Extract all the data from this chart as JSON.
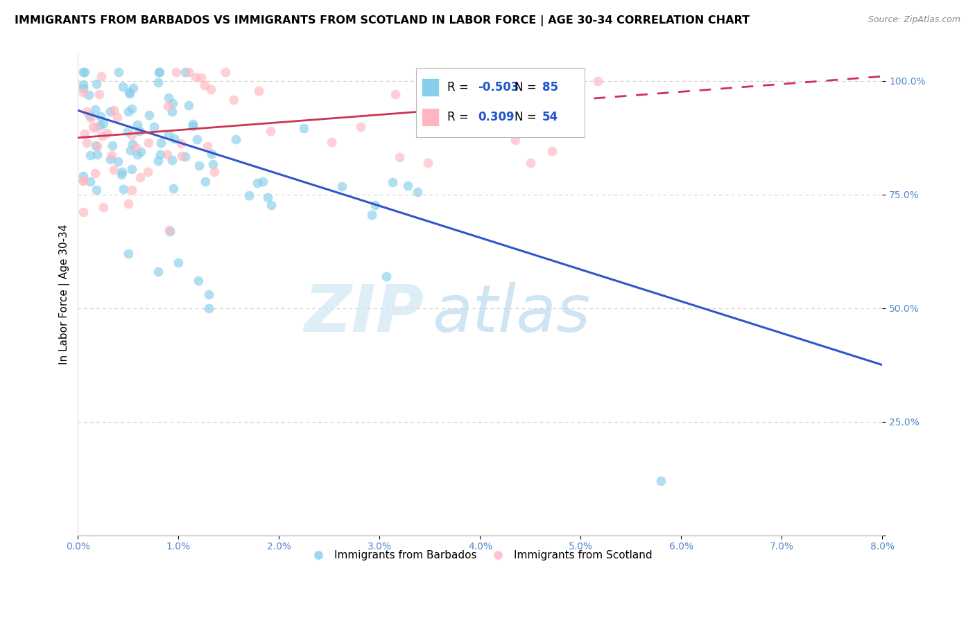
{
  "title": "IMMIGRANTS FROM BARBADOS VS IMMIGRANTS FROM SCOTLAND IN LABOR FORCE | AGE 30-34 CORRELATION CHART",
  "source": "Source: ZipAtlas.com",
  "ylabel": "In Labor Force | Age 30-34",
  "xlim": [
    0.0,
    0.08
  ],
  "ylim": [
    0.0,
    1.06
  ],
  "watermark_zip": "ZIP",
  "watermark_atlas": "atlas",
  "legend_r_barbados": "-0.503",
  "legend_n_barbados": "85",
  "legend_r_scotland": "0.309",
  "legend_n_scotland": "54",
  "color_barbados": "#87CEEB",
  "color_scotland": "#FFB6C1",
  "trendline_barbados_color": "#3355CC",
  "trendline_scotland_color": "#CC3355",
  "trendline_b_x0": 0.0,
  "trendline_b_y0": 0.935,
  "trendline_b_x1": 0.08,
  "trendline_b_y1": 0.375,
  "trendline_s_x0": 0.0,
  "trendline_s_y0": 0.875,
  "trendline_s_x1": 0.08,
  "trendline_s_y1": 1.01,
  "trendline_s_solid_end": 0.045,
  "grid_color": "#cccccc",
  "tick_color": "#5588cc",
  "x_tick_values": [
    0.0,
    0.01,
    0.02,
    0.03,
    0.04,
    0.05,
    0.06,
    0.07,
    0.08
  ],
  "x_tick_labels": [
    "0.0%",
    "1.0%",
    "2.0%",
    "3.0%",
    "4.0%",
    "5.0%",
    "6.0%",
    "7.0%",
    "8.0%"
  ],
  "y_tick_values": [
    0.0,
    0.25,
    0.5,
    0.75,
    1.0
  ],
  "y_tick_labels": [
    "",
    "25.0%",
    "50.0%",
    "75.0%",
    "100.0%"
  ]
}
